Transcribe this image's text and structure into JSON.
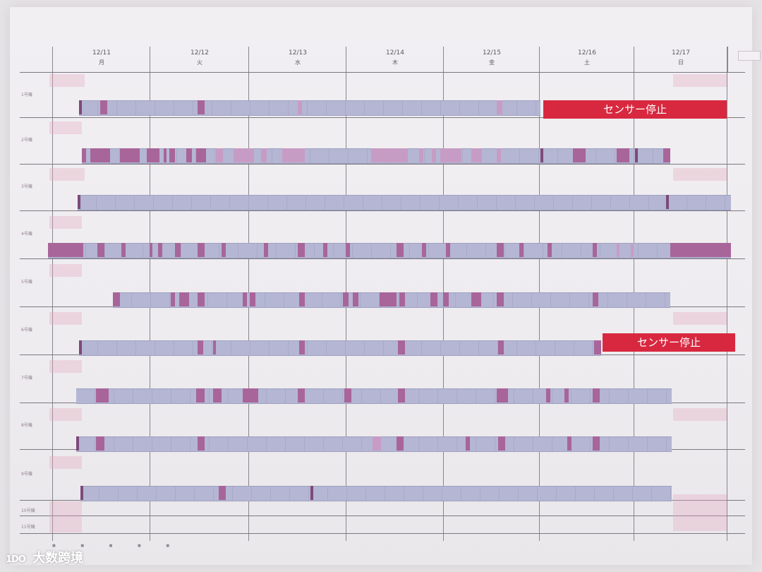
{
  "days": [
    {
      "date": "12/11",
      "dow": "月"
    },
    {
      "date": "12/12",
      "dow": "火"
    },
    {
      "date": "12/13",
      "dow": "水"
    },
    {
      "date": "12/14",
      "dow": "木"
    },
    {
      "date": "12/15",
      "dow": "金"
    },
    {
      "date": "12/16",
      "dow": "土"
    },
    {
      "date": "12/17",
      "dow": "日"
    }
  ],
  "rows": [
    {
      "label": "1号機"
    },
    {
      "label": "2号機"
    },
    {
      "label": "3号機"
    },
    {
      "label": "4号機"
    },
    {
      "label": "5号機"
    },
    {
      "label": "6号機"
    },
    {
      "label": "7号機"
    },
    {
      "label": "8号機"
    },
    {
      "label": "9号機"
    },
    {
      "label": "10号機"
    },
    {
      "label": "11号機"
    }
  ],
  "banners": {
    "row1": "センサー停止",
    "row6": "センサー停止"
  },
  "watermark": {
    "logo": "1DO",
    "text": "大数跨境"
  },
  "colors": {
    "banner": "#d8283f",
    "bar": "#b4b6d4",
    "mark": "#a8659a"
  }
}
